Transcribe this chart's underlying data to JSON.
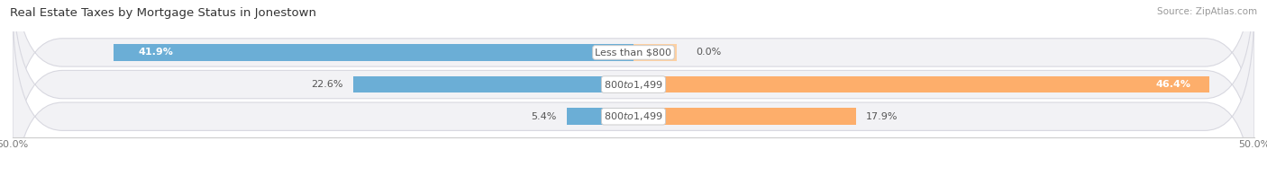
{
  "title": "Real Estate Taxes by Mortgage Status in Jonestown",
  "source": "Source: ZipAtlas.com",
  "rows": [
    {
      "label": "Less than $800",
      "without_mortgage": 41.9,
      "with_mortgage": 0.0,
      "wm_label_inside": true
    },
    {
      "label": "$800 to $1,499",
      "without_mortgage": 22.6,
      "with_mortgage": 46.4,
      "wm_label_inside": false
    },
    {
      "label": "$800 to $1,499",
      "without_mortgage": 5.4,
      "with_mortgage": 17.9,
      "wm_label_inside": false
    }
  ],
  "x_min": -50.0,
  "x_max": 50.0,
  "color_without": "#6baed6",
  "color_with": "#fdae6b",
  "color_with_light": "#fdd0a2",
  "bar_height": 0.52,
  "row_bg_color": "#f0f0f0",
  "row_bg_edge": "#e0e0e0",
  "title_fontsize": 9.5,
  "label_fontsize": 8,
  "tick_fontsize": 8,
  "source_fontsize": 7.5,
  "value_fontsize": 8
}
